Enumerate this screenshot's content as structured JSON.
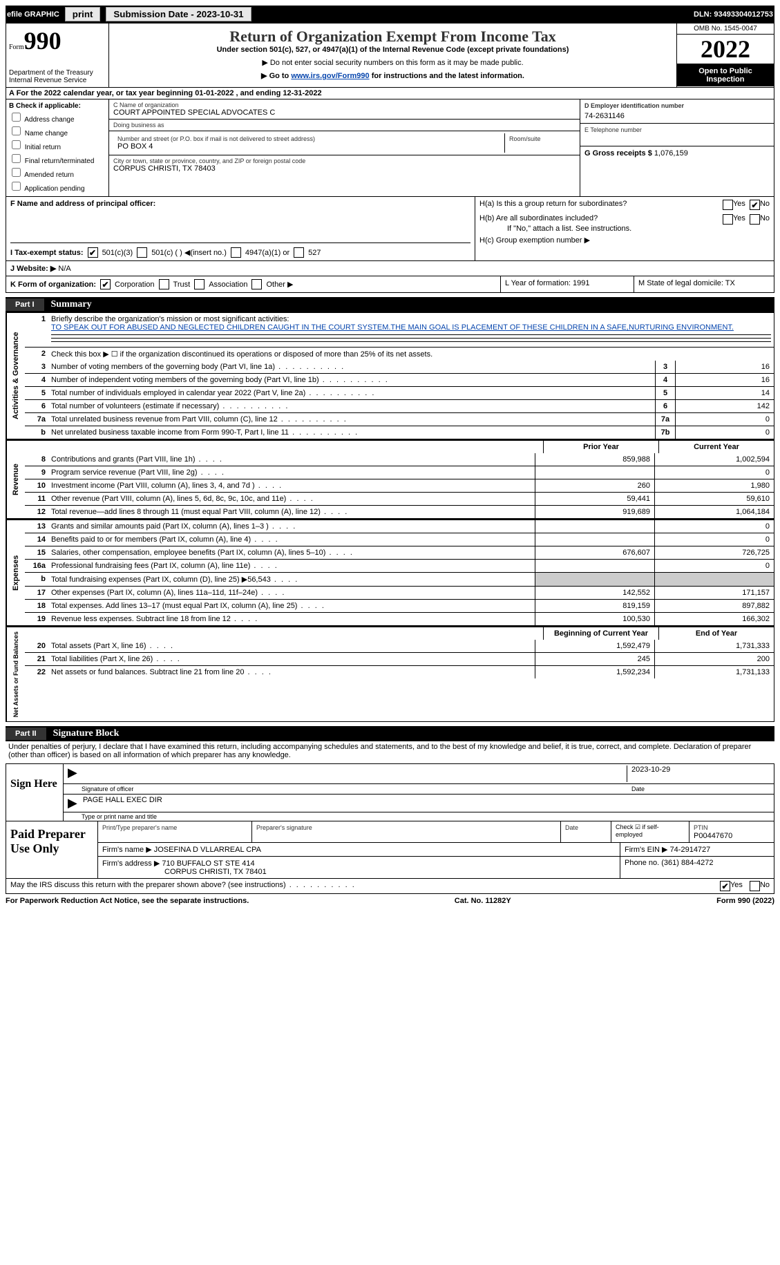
{
  "topbar": {
    "efile": "efile GRAPHIC",
    "print": "print",
    "subdate_label": "Submission Date - 2023-10-31",
    "dln": "DLN: 93493304012753"
  },
  "header": {
    "form_label": "Form",
    "form_num": "990",
    "dept": "Department of the Treasury\nInternal Revenue Service",
    "title": "Return of Organization Exempt From Income Tax",
    "sub": "Under section 501(c), 527, or 4947(a)(1) of the Internal Revenue Code (except private foundations)",
    "note1": "▶ Do not enter social security numbers on this form as it may be made public.",
    "goto_pre": "▶ Go to ",
    "goto_link": "www.irs.gov/Form990",
    "goto_post": " for instructions and the latest information.",
    "omb": "OMB No. 1545-0047",
    "year": "2022",
    "open": "Open to Public Inspection"
  },
  "row_a": "A  For the 2022 calendar year, or tax year beginning 01-01-2022    , and ending 12-31-2022",
  "col_b": {
    "label": "B Check if applicable:",
    "items": [
      "Address change",
      "Name change",
      "Initial return",
      "Final return/terminated",
      "Amended return",
      "Application pending"
    ]
  },
  "col_c": {
    "name_label": "C Name of organization",
    "name": "COURT APPOINTED SPECIAL ADVOCATES C",
    "dba_label": "Doing business as",
    "addr_label": "Number and street (or P.O. box if mail is not delivered to street address)",
    "addr": "PO BOX 4",
    "room_label": "Room/suite",
    "city_label": "City or town, state or province, country, and ZIP or foreign postal code",
    "city": "CORPUS CHRISTI, TX  78403"
  },
  "col_d": {
    "ein_label": "D Employer identification number",
    "ein": "74-2631146",
    "tel_label": "E Telephone number",
    "gross_label": "G Gross receipts $",
    "gross": "1,076,159"
  },
  "row_f": {
    "label": "F Name and address of principal officer:"
  },
  "row_h": {
    "ha": "H(a)  Is this a group return for subordinates?",
    "hb": "H(b)  Are all subordinates included?",
    "hb_note": "If \"No,\" attach a list. See instructions.",
    "hc": "H(c)  Group exemption number ▶",
    "yes": "Yes",
    "no": "No"
  },
  "row_i": {
    "label": "I   Tax-exempt status:",
    "opts": [
      "501(c)(3)",
      "501(c) (  ) ◀(insert no.)",
      "4947(a)(1) or",
      "527"
    ]
  },
  "row_j": {
    "label": "J   Website: ▶",
    "val": "N/A"
  },
  "row_k": {
    "label": "K Form of organization:",
    "opts": [
      "Corporation",
      "Trust",
      "Association",
      "Other ▶"
    ],
    "l": "L Year of formation: 1991",
    "m": "M State of legal domicile: TX"
  },
  "part1": {
    "tag": "Part I",
    "ttl": "Summary"
  },
  "vlabels": {
    "ag": "Activities & Governance",
    "rev": "Revenue",
    "exp": "Expenses",
    "net": "Net Assets or Fund Balances"
  },
  "summary": {
    "l1": "Briefly describe the organization's mission or most significant activities:",
    "mission": "TO SPEAK OUT FOR ABUSED AND NEGLECTED CHILDREN CAUGHT IN THE COURT SYSTEM.THE MAIN GOAL IS PLACEMENT OF THESE CHILDREN IN A SAFE,NURTURING ENVIRONMENT.",
    "l2": "Check this box ▶ ☐  if the organization discontinued its operations or disposed of more than 25% of its net assets.",
    "rows_ag": [
      {
        "n": "3",
        "t": "Number of voting members of the governing body (Part VI, line 1a)",
        "bn": "3",
        "v": "16"
      },
      {
        "n": "4",
        "t": "Number of independent voting members of the governing body (Part VI, line 1b)",
        "bn": "4",
        "v": "16"
      },
      {
        "n": "5",
        "t": "Total number of individuals employed in calendar year 2022 (Part V, line 2a)",
        "bn": "5",
        "v": "14"
      },
      {
        "n": "6",
        "t": "Total number of volunteers (estimate if necessary)",
        "bn": "6",
        "v": "142"
      },
      {
        "n": "7a",
        "t": "Total unrelated business revenue from Part VIII, column (C), line 12",
        "bn": "7a",
        "v": "0"
      },
      {
        "n": "b",
        "t": "Net unrelated business taxable income from Form 990-T, Part I, line 11",
        "bn": "7b",
        "v": "0"
      }
    ],
    "hdr_prior": "Prior Year",
    "hdr_curr": "Current Year",
    "rows_rev": [
      {
        "n": "8",
        "t": "Contributions and grants (Part VIII, line 1h)",
        "p": "859,988",
        "c": "1,002,594"
      },
      {
        "n": "9",
        "t": "Program service revenue (Part VIII, line 2g)",
        "p": "",
        "c": "0"
      },
      {
        "n": "10",
        "t": "Investment income (Part VIII, column (A), lines 3, 4, and 7d )",
        "p": "260",
        "c": "1,980"
      },
      {
        "n": "11",
        "t": "Other revenue (Part VIII, column (A), lines 5, 6d, 8c, 9c, 10c, and 11e)",
        "p": "59,441",
        "c": "59,610"
      },
      {
        "n": "12",
        "t": "Total revenue—add lines 8 through 11 (must equal Part VIII, column (A), line 12)",
        "p": "919,689",
        "c": "1,064,184"
      }
    ],
    "rows_exp": [
      {
        "n": "13",
        "t": "Grants and similar amounts paid (Part IX, column (A), lines 1–3 )",
        "p": "",
        "c": "0"
      },
      {
        "n": "14",
        "t": "Benefits paid to or for members (Part IX, column (A), line 4)",
        "p": "",
        "c": "0"
      },
      {
        "n": "15",
        "t": "Salaries, other compensation, employee benefits (Part IX, column (A), lines 5–10)",
        "p": "676,607",
        "c": "726,725"
      },
      {
        "n": "16a",
        "t": "Professional fundraising fees (Part IX, column (A), line 11e)",
        "p": "",
        "c": "0"
      },
      {
        "n": "b",
        "t": "Total fundraising expenses (Part IX, column (D), line 25) ▶56,543",
        "p": "shade",
        "c": "shade"
      },
      {
        "n": "17",
        "t": "Other expenses (Part IX, column (A), lines 11a–11d, 11f–24e)",
        "p": "142,552",
        "c": "171,157"
      },
      {
        "n": "18",
        "t": "Total expenses. Add lines 13–17 (must equal Part IX, column (A), line 25)",
        "p": "819,159",
        "c": "897,882"
      },
      {
        "n": "19",
        "t": "Revenue less expenses. Subtract line 18 from line 12",
        "p": "100,530",
        "c": "166,302"
      }
    ],
    "hdr_beg": "Beginning of Current Year",
    "hdr_end": "End of Year",
    "rows_net": [
      {
        "n": "20",
        "t": "Total assets (Part X, line 16)",
        "p": "1,592,479",
        "c": "1,731,333"
      },
      {
        "n": "21",
        "t": "Total liabilities (Part X, line 26)",
        "p": "245",
        "c": "200"
      },
      {
        "n": "22",
        "t": "Net assets or fund balances. Subtract line 21 from line 20",
        "p": "1,592,234",
        "c": "1,731,133"
      }
    ]
  },
  "part2": {
    "tag": "Part II",
    "ttl": "Signature Block"
  },
  "penalties": "Under penalties of perjury, I declare that I have examined this return, including accompanying schedules and statements, and to the best of my knowledge and belief, it is true, correct, and complete. Declaration of preparer (other than officer) is based on all information of which preparer has any knowledge.",
  "sign": {
    "label": "Sign Here",
    "sig_officer": "Signature of officer",
    "date_label": "Date",
    "date": "2023-10-29",
    "name": "PAGE HALL  EXEC DIR",
    "name_label": "Type or print name and title"
  },
  "prep": {
    "label": "Paid Preparer Use Only",
    "h1": "Print/Type preparer's name",
    "h2": "Preparer's signature",
    "h3": "Date",
    "h4": "Check ☑ if self-employed",
    "h5": "PTIN",
    "ptin": "P00447670",
    "firm_label": "Firm's name    ▶",
    "firm": "JOSEFINA D VLLARREAL CPA",
    "ein_label": "Firm's EIN ▶",
    "ein": "74-2914727",
    "addr_label": "Firm's address ▶",
    "addr1": "710 BUFFALO ST STE 414",
    "addr2": "CORPUS CHRISTI, TX  78401",
    "phone_label": "Phone no.",
    "phone": "(361) 884-4272"
  },
  "discuss": {
    "text": "May the IRS discuss this return with the preparer shown above? (see instructions)",
    "yes": "Yes",
    "no": "No"
  },
  "footer": {
    "left": "For Paperwork Reduction Act Notice, see the separate instructions.",
    "mid": "Cat. No. 11282Y",
    "right": "Form 990 (2022)"
  }
}
